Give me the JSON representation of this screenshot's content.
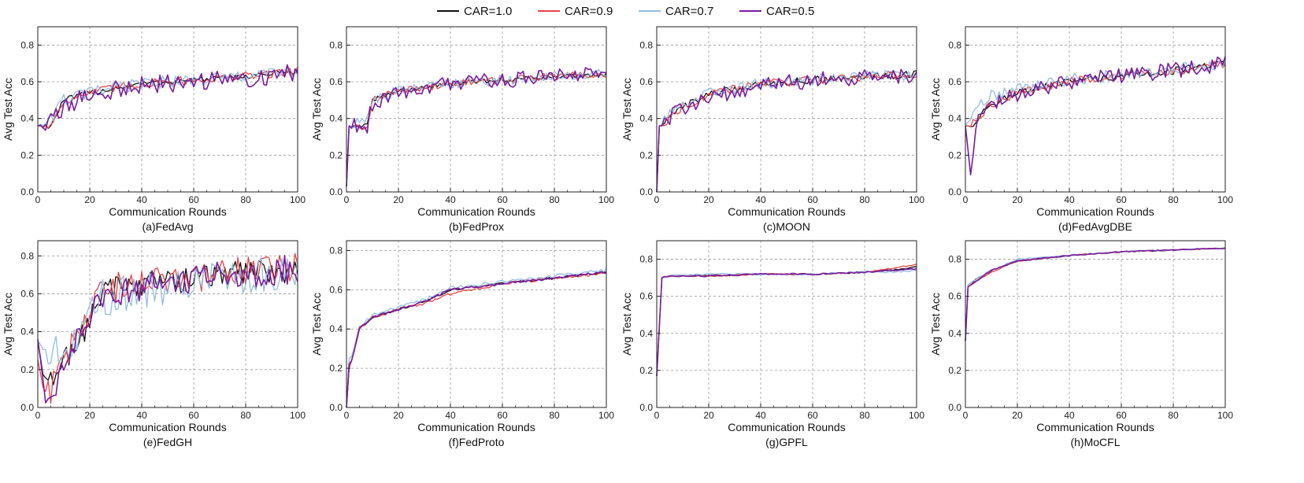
{
  "legend": [
    {
      "label": "CAR=1.0",
      "color": "#111111"
    },
    {
      "label": "CAR=0.9",
      "color": "#e84545"
    },
    {
      "label": "CAR=0.7",
      "color": "#93bde0"
    },
    {
      "label": "CAR=0.5",
      "color": "#7a1c9e"
    }
  ],
  "chart_data": [
    {
      "type": "line",
      "title": "(a)FedAvg",
      "xlabel": "Communication Rounds",
      "ylabel": "Avg Test Acc",
      "xlim": [
        0,
        100
      ],
      "ylim": [
        0.0,
        0.9
      ],
      "xticks": [
        "0",
        "20",
        "40",
        "60",
        "80",
        "100"
      ],
      "yticks": [
        "0.0",
        "0.2",
        "0.4",
        "0.6",
        "0.8"
      ],
      "x": [
        0,
        5,
        10,
        20,
        40,
        60,
        80,
        100
      ],
      "series": [
        {
          "name": "CAR=1.0",
          "color": "#111111",
          "start": 0.36,
          "values": [
            0.36,
            0.36,
            0.5,
            0.54,
            0.59,
            0.61,
            0.63,
            0.66
          ],
          "noise": 0.015
        },
        {
          "name": "CAR=0.9",
          "color": "#e84545",
          "start": 0.36,
          "values": [
            0.36,
            0.36,
            0.5,
            0.54,
            0.59,
            0.61,
            0.63,
            0.66
          ],
          "noise": 0.025
        },
        {
          "name": "CAR=0.7",
          "color": "#93bde0",
          "start": 0.36,
          "values": [
            0.36,
            0.4,
            0.5,
            0.54,
            0.59,
            0.61,
            0.63,
            0.66
          ],
          "noise": 0.035
        },
        {
          "name": "CAR=0.5",
          "color": "#7a1c9e",
          "start": 0.36,
          "values": [
            0.36,
            0.38,
            0.46,
            0.53,
            0.58,
            0.6,
            0.62,
            0.65
          ],
          "noise": 0.05
        }
      ]
    },
    {
      "type": "line",
      "title": "(b)FedProx",
      "xlabel": "Communication Rounds",
      "ylabel": "Avg Test Acc",
      "xlim": [
        0,
        100
      ],
      "ylim": [
        0.0,
        0.9
      ],
      "xticks": [
        "0",
        "20",
        "40",
        "60",
        "80",
        "100"
      ],
      "yticks": [
        "0.0",
        "0.2",
        "0.4",
        "0.6",
        "0.8"
      ],
      "x": [
        0,
        1,
        8,
        10,
        20,
        40,
        60,
        80,
        100
      ],
      "series": [
        {
          "name": "CAR=1.0",
          "color": "#111111",
          "start": 0.03,
          "values": [
            0.03,
            0.36,
            0.36,
            0.5,
            0.55,
            0.59,
            0.61,
            0.63,
            0.64
          ],
          "noise": 0.012
        },
        {
          "name": "CAR=0.9",
          "color": "#e84545",
          "start": 0.03,
          "values": [
            0.03,
            0.36,
            0.36,
            0.5,
            0.55,
            0.59,
            0.61,
            0.63,
            0.64
          ],
          "noise": 0.02
        },
        {
          "name": "CAR=0.7",
          "color": "#93bde0",
          "start": 0.03,
          "values": [
            0.03,
            0.36,
            0.4,
            0.5,
            0.55,
            0.59,
            0.61,
            0.63,
            0.64
          ],
          "noise": 0.03
        },
        {
          "name": "CAR=0.5",
          "color": "#7a1c9e",
          "start": 0.03,
          "values": [
            0.03,
            0.36,
            0.36,
            0.48,
            0.55,
            0.59,
            0.61,
            0.63,
            0.64
          ],
          "noise": 0.045
        }
      ]
    },
    {
      "type": "line",
      "title": "(c)MOON",
      "xlabel": "Communication Rounds",
      "ylabel": "Avg Test Acc",
      "xlim": [
        0,
        100
      ],
      "ylim": [
        0.0,
        0.9
      ],
      "xticks": [
        "0",
        "20",
        "40",
        "60",
        "80",
        "100"
      ],
      "yticks": [
        "0.0",
        "0.2",
        "0.4",
        "0.6",
        "0.8"
      ],
      "x": [
        0,
        1,
        5,
        10,
        20,
        40,
        60,
        80,
        100
      ],
      "series": [
        {
          "name": "CAR=1.0",
          "color": "#111111",
          "start": 0.0,
          "values": [
            0.0,
            0.36,
            0.4,
            0.47,
            0.53,
            0.59,
            0.61,
            0.63,
            0.64
          ],
          "noise": 0.02
        },
        {
          "name": "CAR=0.9",
          "color": "#e84545",
          "start": 0.0,
          "values": [
            0.0,
            0.36,
            0.4,
            0.47,
            0.53,
            0.59,
            0.61,
            0.63,
            0.64
          ],
          "noise": 0.025
        },
        {
          "name": "CAR=0.7",
          "color": "#93bde0",
          "start": 0.0,
          "values": [
            0.0,
            0.36,
            0.42,
            0.48,
            0.54,
            0.59,
            0.61,
            0.63,
            0.64
          ],
          "noise": 0.03
        },
        {
          "name": "CAR=0.5",
          "color": "#7a1c9e",
          "start": 0.0,
          "values": [
            0.0,
            0.36,
            0.4,
            0.46,
            0.52,
            0.58,
            0.61,
            0.62,
            0.63
          ],
          "noise": 0.045
        }
      ]
    },
    {
      "type": "line",
      "title": "(d)FedAvgDBE",
      "xlabel": "Communication Rounds",
      "ylabel": "Avg Test Acc",
      "xlim": [
        0,
        100
      ],
      "ylim": [
        0.0,
        0.9
      ],
      "xticks": [
        "0",
        "20",
        "40",
        "60",
        "80",
        "100"
      ],
      "yticks": [
        "0.0",
        "0.2",
        "0.4",
        "0.6",
        "0.8"
      ],
      "x": [
        0,
        2,
        5,
        10,
        20,
        40,
        60,
        80,
        100
      ],
      "series": [
        {
          "name": "CAR=1.0",
          "color": "#111111",
          "start": 0.36,
          "values": [
            0.36,
            0.36,
            0.4,
            0.48,
            0.54,
            0.6,
            0.63,
            0.66,
            0.7
          ],
          "noise": 0.02
        },
        {
          "name": "CAR=0.9",
          "color": "#e84545",
          "start": 0.36,
          "values": [
            0.36,
            0.36,
            0.4,
            0.48,
            0.54,
            0.6,
            0.63,
            0.66,
            0.7
          ],
          "noise": 0.025
        },
        {
          "name": "CAR=0.7",
          "color": "#93bde0",
          "start": 0.36,
          "values": [
            0.36,
            0.4,
            0.46,
            0.52,
            0.56,
            0.61,
            0.64,
            0.67,
            0.7
          ],
          "noise": 0.035
        },
        {
          "name": "CAR=0.5",
          "color": "#7a1c9e",
          "start": 0.36,
          "values": [
            0.36,
            0.1,
            0.4,
            0.47,
            0.53,
            0.6,
            0.63,
            0.66,
            0.7
          ],
          "noise": 0.045
        }
      ]
    },
    {
      "type": "line",
      "title": "(e)FedGH",
      "xlabel": "Communication Rounds",
      "ylabel": "Avg Test Acc",
      "xlim": [
        0,
        100
      ],
      "ylim": [
        0.0,
        0.88
      ],
      "xticks": [
        "0",
        "20",
        "40",
        "60",
        "80",
        "100"
      ],
      "yticks": [
        "0.0",
        "0.2",
        "0.4",
        "0.6",
        "0.8"
      ],
      "x": [
        0,
        3,
        6,
        10,
        15,
        20,
        25,
        40,
        60,
        80,
        100
      ],
      "series": [
        {
          "name": "CAR=1.0",
          "color": "#111111",
          "start": 0.35,
          "values": [
            0.35,
            0.1,
            0.15,
            0.25,
            0.35,
            0.45,
            0.62,
            0.66,
            0.68,
            0.72,
            0.73
          ],
          "noise": 0.07
        },
        {
          "name": "CAR=0.9",
          "color": "#e84545",
          "start": 0.25,
          "values": [
            0.25,
            0.05,
            0.12,
            0.25,
            0.38,
            0.48,
            0.62,
            0.66,
            0.68,
            0.72,
            0.74
          ],
          "noise": 0.08
        },
        {
          "name": "CAR=0.7",
          "color": "#93bde0",
          "start": 0.35,
          "values": [
            0.35,
            0.3,
            0.3,
            0.32,
            0.36,
            0.48,
            0.58,
            0.62,
            0.66,
            0.69,
            0.72
          ],
          "noise": 0.1
        },
        {
          "name": "CAR=0.5",
          "color": "#7a1c9e",
          "start": 0.36,
          "values": [
            0.36,
            0.05,
            0.1,
            0.26,
            0.38,
            0.5,
            0.58,
            0.64,
            0.68,
            0.71,
            0.73
          ],
          "noise": 0.08
        }
      ]
    },
    {
      "type": "line",
      "title": "(f)FedProto",
      "xlabel": "Communication Rounds",
      "ylabel": "Avg Test Acc",
      "xlim": [
        0,
        100
      ],
      "ylim": [
        0.0,
        0.85
      ],
      "xticks": [
        "0",
        "20",
        "40",
        "60",
        "80",
        "100"
      ],
      "yticks": [
        "0.0",
        "0.2",
        "0.4",
        "0.6",
        "0.8"
      ],
      "x": [
        0,
        1,
        2,
        5,
        10,
        20,
        30,
        40,
        60,
        80,
        100
      ],
      "series": [
        {
          "name": "CAR=1.0",
          "color": "#111111",
          "start": 0.0,
          "values": [
            0.0,
            0.2,
            0.24,
            0.4,
            0.46,
            0.5,
            0.54,
            0.6,
            0.63,
            0.66,
            0.69
          ],
          "noise": 0.006
        },
        {
          "name": "CAR=0.9",
          "color": "#e84545",
          "start": 0.0,
          "values": [
            0.0,
            0.2,
            0.24,
            0.4,
            0.46,
            0.5,
            0.53,
            0.58,
            0.63,
            0.66,
            0.68
          ],
          "noise": 0.008
        },
        {
          "name": "CAR=0.7",
          "color": "#93bde0",
          "start": 0.0,
          "values": [
            0.0,
            0.25,
            0.26,
            0.41,
            0.47,
            0.51,
            0.55,
            0.61,
            0.64,
            0.67,
            0.7
          ],
          "noise": 0.008
        },
        {
          "name": "CAR=0.5",
          "color": "#7a1c9e",
          "start": 0.0,
          "values": [
            0.0,
            0.22,
            0.24,
            0.4,
            0.46,
            0.5,
            0.54,
            0.6,
            0.63,
            0.66,
            0.69
          ],
          "noise": 0.006
        }
      ]
    },
    {
      "type": "line",
      "title": "(g)GPFL",
      "xlabel": "Communication Rounds",
      "ylabel": "Avg Test Acc",
      "xlim": [
        0,
        100
      ],
      "ylim": [
        0.0,
        0.9
      ],
      "xticks": [
        "0",
        "20",
        "40",
        "60",
        "80",
        "100"
      ],
      "yticks": [
        "0.0",
        "0.2",
        "0.4",
        "0.6",
        "0.8"
      ],
      "x": [
        0,
        2,
        5,
        20,
        40,
        60,
        80,
        90,
        100
      ],
      "series": [
        {
          "name": "CAR=1.0",
          "color": "#111111",
          "start": 0.17,
          "values": [
            0.17,
            0.7,
            0.71,
            0.71,
            0.72,
            0.72,
            0.73,
            0.74,
            0.76
          ],
          "noise": 0.004
        },
        {
          "name": "CAR=0.9",
          "color": "#e84545",
          "start": 0.17,
          "values": [
            0.17,
            0.7,
            0.71,
            0.71,
            0.72,
            0.72,
            0.73,
            0.75,
            0.77
          ],
          "noise": 0.004
        },
        {
          "name": "CAR=0.7",
          "color": "#93bde0",
          "start": 0.17,
          "values": [
            0.17,
            0.7,
            0.71,
            0.72,
            0.72,
            0.72,
            0.73,
            0.73,
            0.74
          ],
          "noise": 0.004
        },
        {
          "name": "CAR=0.5",
          "color": "#7a1c9e",
          "start": 0.17,
          "values": [
            0.17,
            0.7,
            0.71,
            0.71,
            0.72,
            0.72,
            0.73,
            0.74,
            0.75
          ],
          "noise": 0.004
        }
      ]
    },
    {
      "type": "line",
      "title": "(h)MoCFL",
      "xlabel": "Communication Rounds",
      "ylabel": "Avg Test Acc",
      "xlim": [
        0,
        100
      ],
      "ylim": [
        0.0,
        0.9
      ],
      "xticks": [
        "0",
        "20",
        "40",
        "60",
        "80",
        "100"
      ],
      "yticks": [
        "0.0",
        "0.2",
        "0.4",
        "0.6",
        "0.8"
      ],
      "x": [
        0,
        1,
        5,
        10,
        20,
        40,
        60,
        80,
        100
      ],
      "series": [
        {
          "name": "CAR=1.0",
          "color": "#111111",
          "start": 0.36,
          "values": [
            0.36,
            0.66,
            0.7,
            0.74,
            0.79,
            0.82,
            0.84,
            0.85,
            0.86
          ],
          "noise": 0.003
        },
        {
          "name": "CAR=0.9",
          "color": "#e84545",
          "start": 0.36,
          "values": [
            0.36,
            0.65,
            0.69,
            0.73,
            0.79,
            0.82,
            0.84,
            0.85,
            0.86
          ],
          "noise": 0.003
        },
        {
          "name": "CAR=0.7",
          "color": "#93bde0",
          "start": 0.36,
          "values": [
            0.36,
            0.66,
            0.7,
            0.74,
            0.8,
            0.82,
            0.84,
            0.85,
            0.86
          ],
          "noise": 0.003
        },
        {
          "name": "CAR=0.5",
          "color": "#7a1c9e",
          "start": 0.36,
          "values": [
            0.36,
            0.65,
            0.69,
            0.74,
            0.79,
            0.82,
            0.84,
            0.85,
            0.86
          ],
          "noise": 0.003
        }
      ]
    }
  ]
}
